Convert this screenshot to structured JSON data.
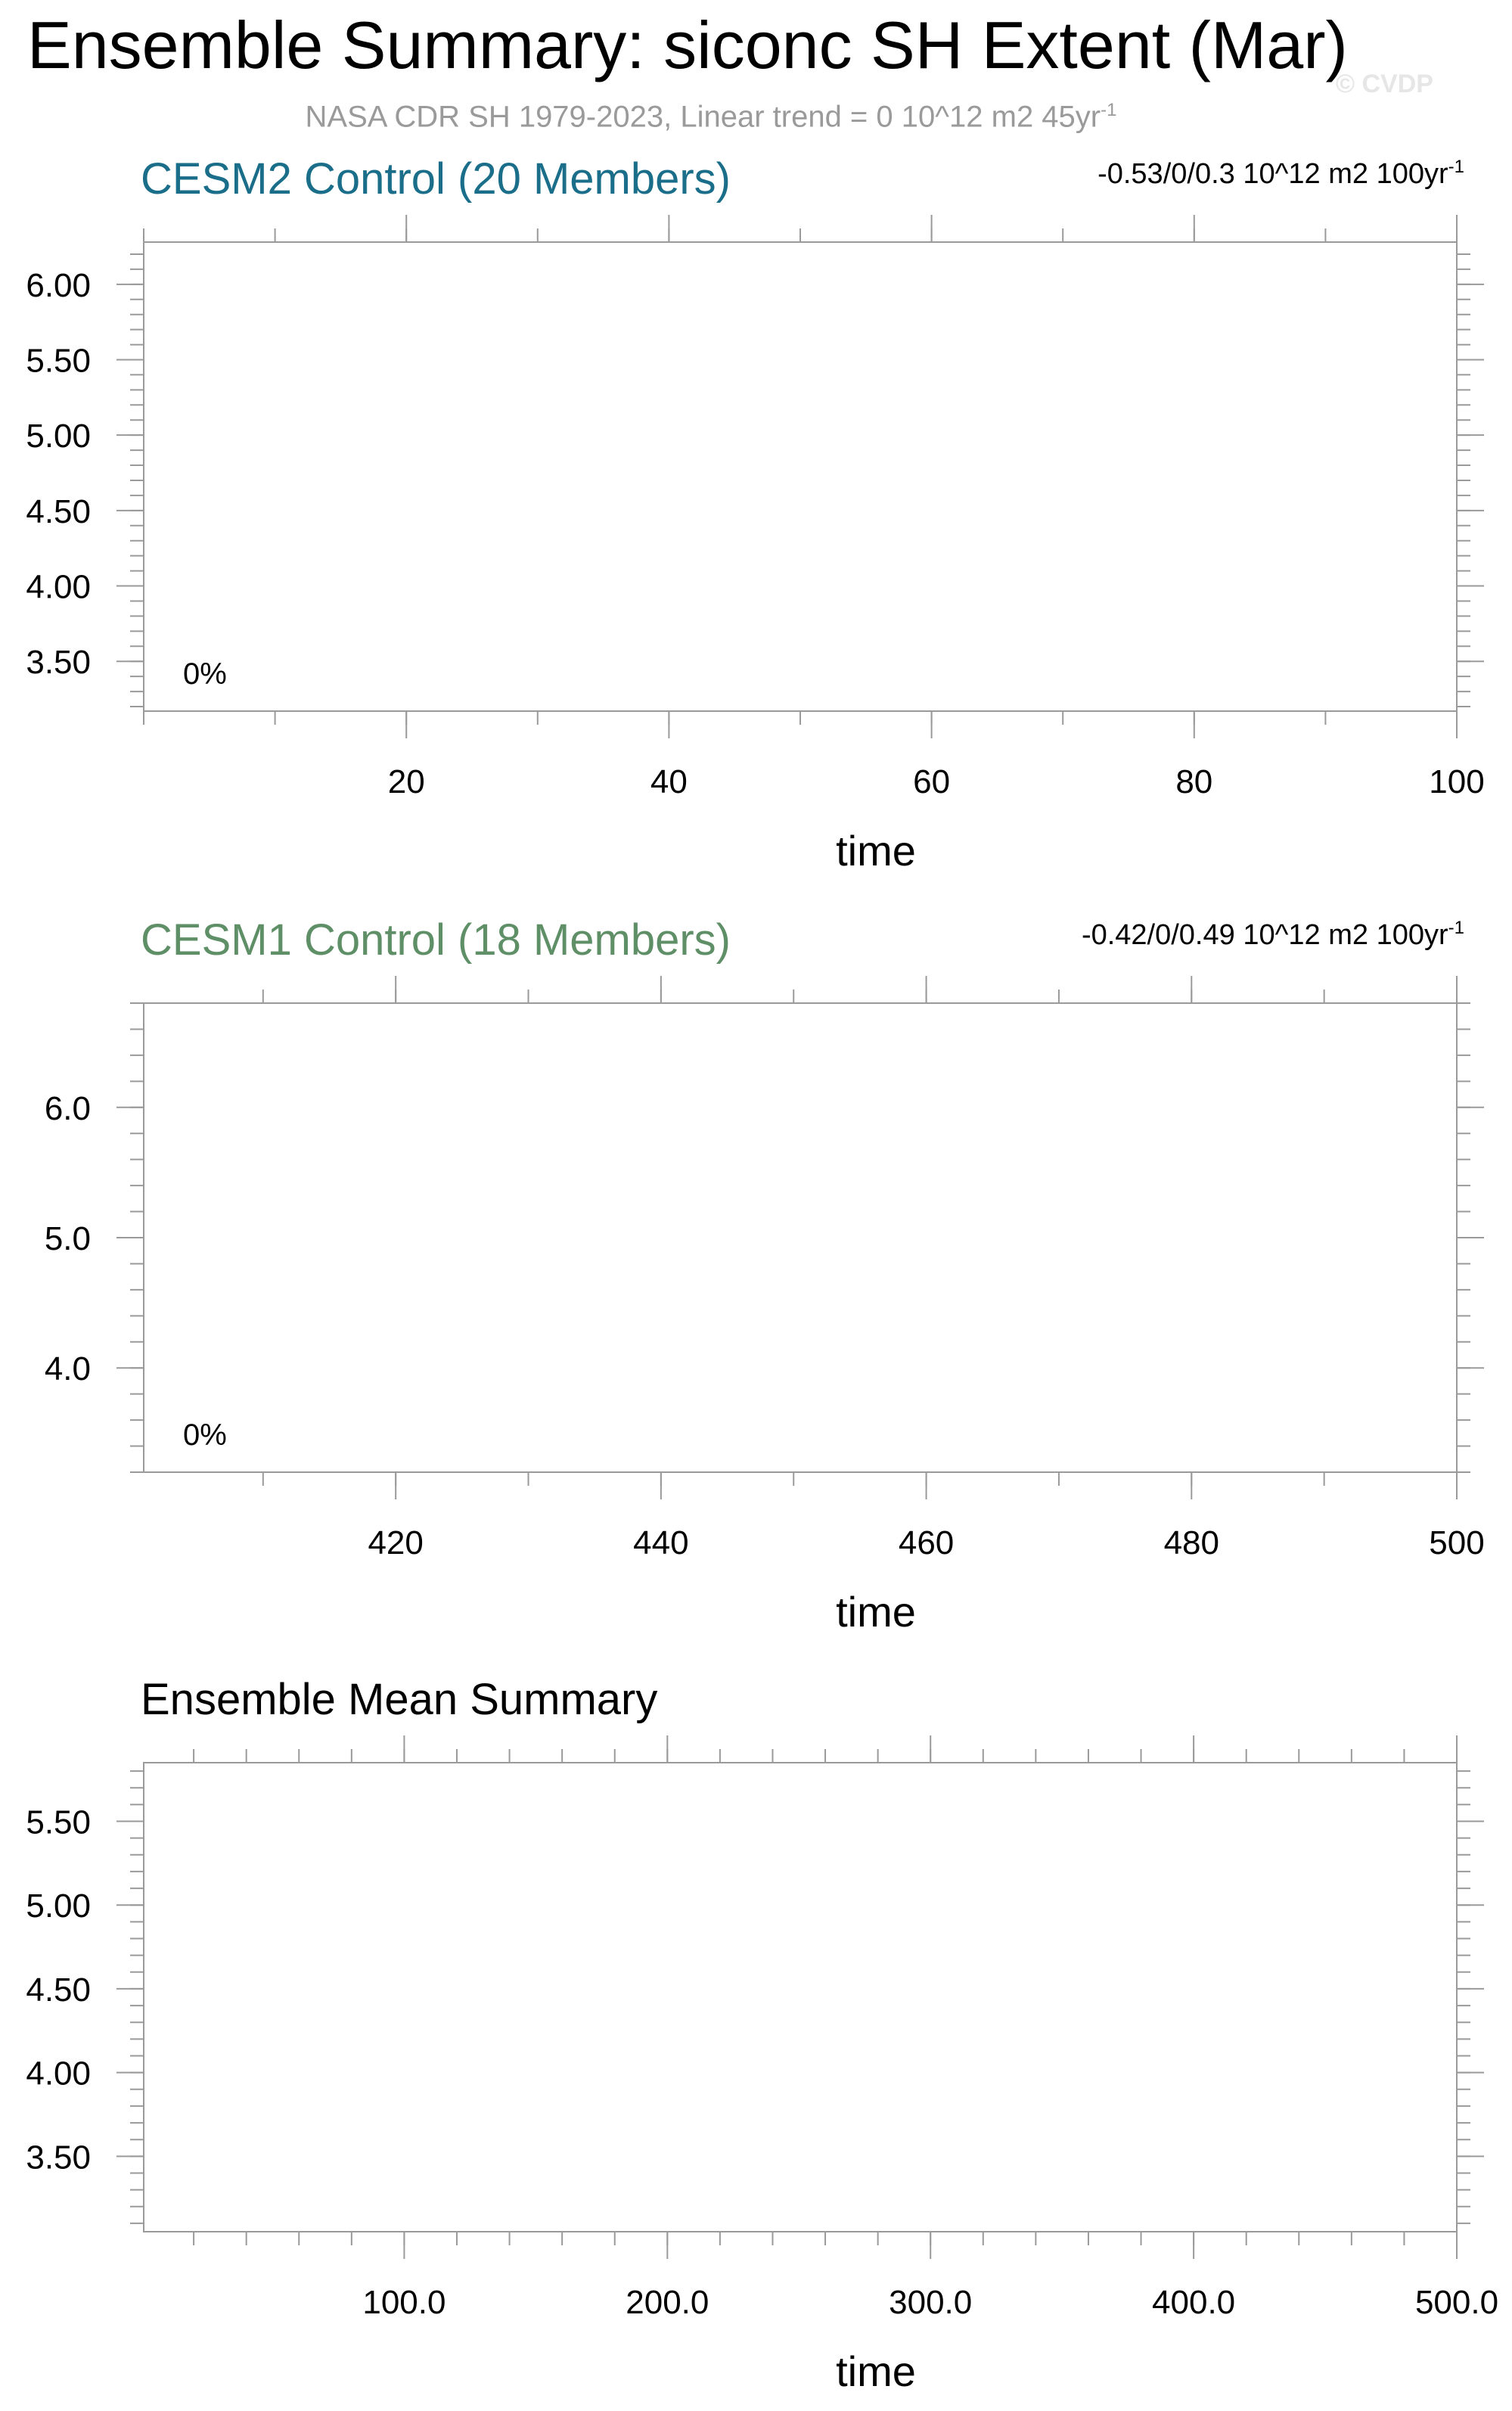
{
  "header": {
    "title": "Ensemble Summary: siconc SH Extent (Mar)",
    "subtitle_main": "NASA CDR SH 1979-2023, Linear trend = 0 10^12 m2 45yr",
    "subtitle_sup": "-1",
    "watermark": "© CVDP"
  },
  "colors": {
    "cesm2": "#1a6e8a",
    "cesm1": "#5e8f67",
    "neutral": "#000000",
    "subtitle": "#9a9a9a",
    "frame": "#9a9a9a"
  },
  "chart_data": [
    {
      "type": "line",
      "title": "CESM2 Control (20 Members)",
      "trend_text": "-0.53/0/0.3 10^12 m2 100yr",
      "trend_sup": "-1",
      "annotation": "0%",
      "xlabel": "time",
      "ylabel": "",
      "xlim": [
        0,
        100
      ],
      "ylim": [
        3.17,
        6.28
      ],
      "xticks": [
        20,
        40,
        60,
        80,
        100
      ],
      "xtick_labels": [
        "20",
        "40",
        "60",
        "80",
        "100"
      ],
      "yticks": [
        3.5,
        4.0,
        4.5,
        5.0,
        5.5,
        6.0
      ],
      "ytick_labels": [
        "3.50",
        "4.00",
        "4.50",
        "5.00",
        "5.50",
        "6.00"
      ],
      "x_minor_step": 10,
      "y_minor_step": 0.1,
      "series": [],
      "grid": false
    },
    {
      "type": "line",
      "title": "CESM1 Control (18 Members)",
      "trend_text": "-0.42/0/0.49 10^12 m2 100yr",
      "trend_sup": "-1",
      "annotation": "0%",
      "xlabel": "time",
      "ylabel": "",
      "xlim": [
        401,
        500
      ],
      "ylim": [
        3.2,
        6.8
      ],
      "xticks": [
        420,
        440,
        460,
        480,
        500
      ],
      "xtick_labels": [
        "420",
        "440",
        "460",
        "480",
        "500"
      ],
      "yticks": [
        4.0,
        5.0,
        6.0
      ],
      "ytick_labels": [
        "4.0",
        "5.0",
        "6.0"
      ],
      "x_minor_step": 10,
      "y_minor_step": 0.2,
      "series": [],
      "grid": false
    },
    {
      "type": "line",
      "title": "Ensemble Mean Summary",
      "trend_text": "",
      "trend_sup": "",
      "annotation": "",
      "xlabel": "time",
      "ylabel": "",
      "xlim": [
        1,
        500
      ],
      "ylim": [
        3.05,
        5.85
      ],
      "xticks": [
        100,
        200,
        300,
        400,
        500
      ],
      "xtick_labels": [
        "100.0",
        "200.0",
        "300.0",
        "400.0",
        "500.0"
      ],
      "yticks": [
        3.5,
        4.0,
        4.5,
        5.0,
        5.5
      ],
      "ytick_labels": [
        "3.50",
        "4.00",
        "4.50",
        "5.00",
        "5.50"
      ],
      "x_minor_step": 20,
      "y_minor_step": 0.1,
      "series": [],
      "grid": false
    }
  ]
}
